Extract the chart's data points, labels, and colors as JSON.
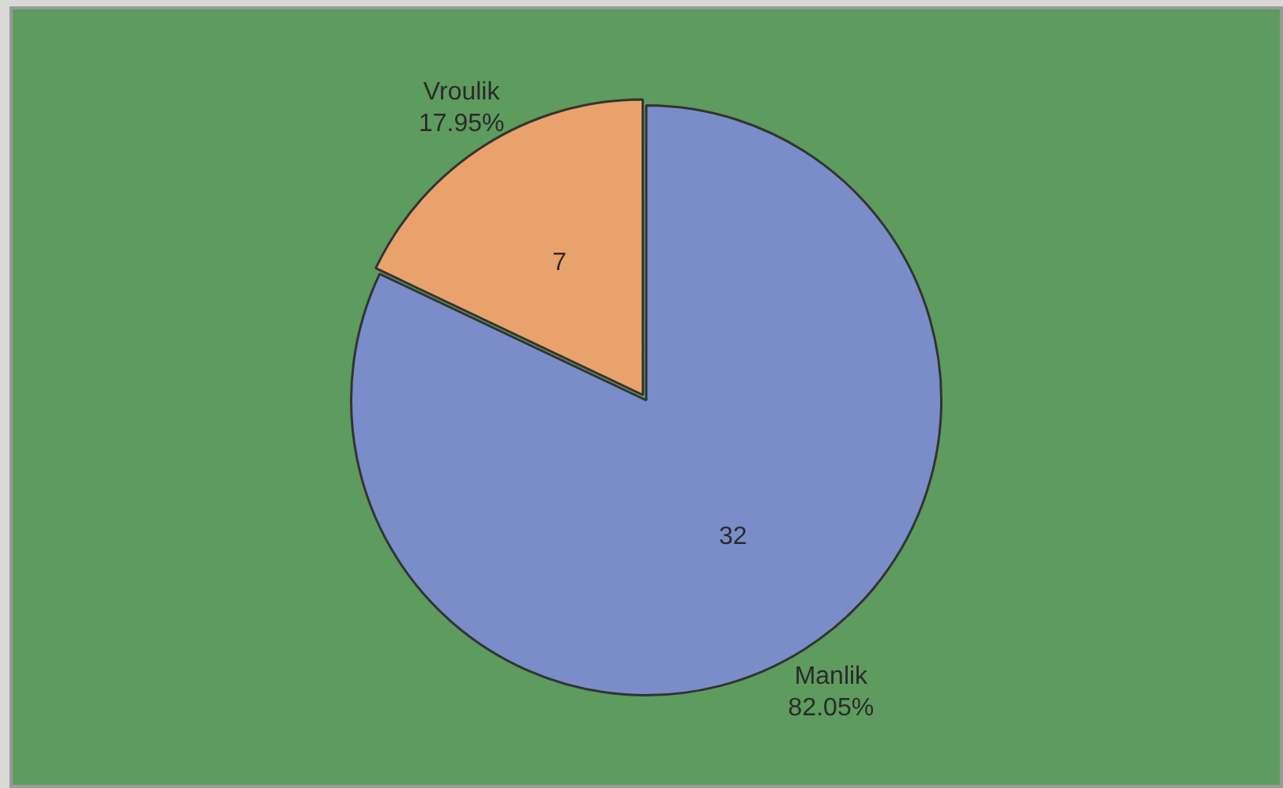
{
  "chart_data": {
    "type": "pie",
    "categories": [
      "Manlik",
      "Vroulik"
    ],
    "values": [
      82.05,
      17.95
    ],
    "colors": [
      "#7b8dc8",
      "#e9a26c"
    ],
    "value_labels": [
      "82.05%",
      "17.95%"
    ],
    "annotations": [
      {
        "text": "32",
        "x": "Manlik"
      },
      {
        "text": "7",
        "x": "Vroulik"
      }
    ]
  }
}
